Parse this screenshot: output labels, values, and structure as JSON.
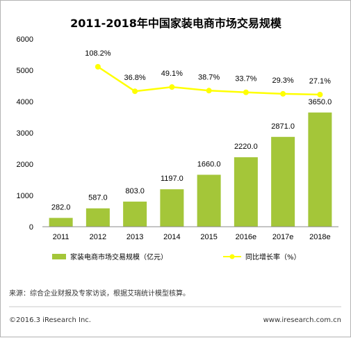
{
  "chart_data": {
    "type": "bar",
    "title": "2011-2018年中国家装电商市场交易规模",
    "categories": [
      "2011",
      "2012",
      "2013",
      "2014",
      "2015",
      "2016e",
      "2017e",
      "2018e"
    ],
    "series": [
      {
        "name": "家装电商市场交易规模（亿元）",
        "type": "bar",
        "values": [
          282.0,
          587.0,
          803.0,
          1197.0,
          1660.0,
          2220.0,
          2871.0,
          3650.0
        ],
        "labels": [
          "282.0",
          "587.0",
          "803.0",
          "1197.0",
          "1660.0",
          "2220.0",
          "2871.0",
          "3650.0"
        ]
      },
      {
        "name": "同比增长率（%）",
        "type": "line",
        "values": [
          null,
          108.2,
          36.8,
          49.1,
          38.7,
          33.7,
          29.3,
          27.1
        ],
        "labels": [
          "",
          "108.2%",
          "36.8%",
          "49.1%",
          "38.7%",
          "33.7%",
          "29.3%",
          "27.1%"
        ]
      }
    ],
    "y_ticks": [
      "0",
      "1000",
      "2000",
      "3000",
      "4000",
      "5000",
      "6000"
    ],
    "ylim": [
      0,
      6000
    ],
    "grid": false,
    "legend_position": "bottom",
    "colors": {
      "bar": "#a4c639",
      "line": "#ffff00",
      "text": "#000000"
    }
  },
  "footer": {
    "source": "来源：综合企业财报及专家访谈，根据艾瑞统计模型核算。",
    "copyright": "©2016.3 iResearch Inc.",
    "website": "www.iresearch.com.cn"
  }
}
